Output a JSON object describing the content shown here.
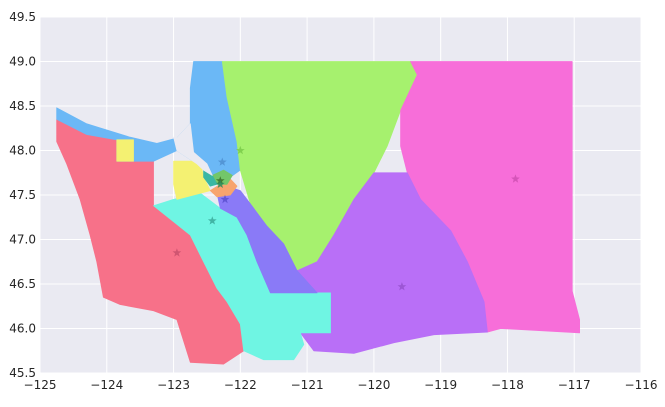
{
  "chart_data": {
    "type": "choropleth-map",
    "title": "",
    "xlabel": "",
    "ylabel": "",
    "xlim": [
      -125,
      -116
    ],
    "ylim": [
      45.5,
      49.5
    ],
    "grid": true,
    "background": "#eaeaf2",
    "x_ticks": [
      -125,
      -124,
      -123,
      -122,
      -121,
      -120,
      -119,
      -118,
      -117,
      -116
    ],
    "x_tick_labels": [
      "−125",
      "−124",
      "−123",
      "−122",
      "−121",
      "−120",
      "−119",
      "−118",
      "−117",
      "−116"
    ],
    "y_ticks": [
      45.5,
      46.0,
      46.5,
      47.0,
      47.5,
      48.0,
      48.5,
      49.0,
      49.5
    ],
    "y_tick_labels": [
      "45.5",
      "46.0",
      "46.5",
      "47.0",
      "47.5",
      "48.0",
      "48.5",
      "49.0",
      "49.5"
    ],
    "regions": [
      {
        "id": "southwest",
        "color": "#f77189",
        "outline": [
          [
            -124.75,
            48.35
          ],
          [
            -124.3,
            48.18
          ],
          [
            -123.85,
            48.12
          ],
          [
            -123.85,
            47.88
          ],
          [
            -123.3,
            47.88
          ],
          [
            -123.3,
            47.38
          ],
          [
            -123.0,
            47.2
          ],
          [
            -122.75,
            47.05
          ],
          [
            -122.55,
            46.75
          ],
          [
            -122.35,
            46.45
          ],
          [
            -122.2,
            46.3
          ],
          [
            -122.0,
            46.05
          ],
          [
            -121.95,
            45.75
          ],
          [
            -122.25,
            45.6
          ],
          [
            -122.75,
            45.62
          ],
          [
            -122.95,
            46.1
          ],
          [
            -123.3,
            46.2
          ],
          [
            -123.8,
            46.27
          ],
          [
            -124.05,
            46.35
          ],
          [
            -124.15,
            46.75
          ],
          [
            -124.25,
            47.05
          ],
          [
            -124.4,
            47.45
          ],
          [
            -124.6,
            47.85
          ],
          [
            -124.75,
            48.1
          ]
        ]
      },
      {
        "id": "northwest-olympic",
        "color": "#6bb8f6",
        "outline": [
          [
            -124.75,
            48.48
          ],
          [
            -124.3,
            48.3
          ],
          [
            -123.65,
            48.15
          ],
          [
            -123.25,
            48.08
          ],
          [
            -122.95,
            48.14
          ],
          [
            -122.75,
            48.3
          ],
          [
            -122.75,
            48.7
          ],
          [
            -122.7,
            49.0
          ],
          [
            -122.27,
            49.0
          ],
          [
            -122.2,
            48.6
          ],
          [
            -122.05,
            48.1
          ],
          [
            -122.0,
            47.78
          ],
          [
            -122.3,
            47.62
          ],
          [
            -122.65,
            47.85
          ],
          [
            -122.95,
            48.0
          ],
          [
            -123.3,
            47.88
          ],
          [
            -123.85,
            47.88
          ],
          [
            -123.85,
            48.12
          ],
          [
            -124.3,
            48.18
          ],
          [
            -124.75,
            48.35
          ]
        ]
      },
      {
        "id": "north-central",
        "color": "#a6f16e",
        "outline": [
          [
            -122.27,
            49.0
          ],
          [
            -119.45,
            49.0
          ],
          [
            -119.35,
            48.85
          ],
          [
            -119.6,
            48.45
          ],
          [
            -119.8,
            48.05
          ],
          [
            -120.0,
            47.75
          ],
          [
            -120.3,
            47.45
          ],
          [
            -120.6,
            47.05
          ],
          [
            -120.85,
            46.75
          ],
          [
            -121.15,
            46.65
          ],
          [
            -121.35,
            46.95
          ],
          [
            -121.6,
            47.15
          ],
          [
            -121.85,
            47.4
          ],
          [
            -122.0,
            47.78
          ],
          [
            -122.05,
            48.1
          ],
          [
            -122.2,
            48.6
          ]
        ]
      },
      {
        "id": "northeast",
        "color": "#f76ed9",
        "outline": [
          [
            -119.45,
            49.0
          ],
          [
            -117.03,
            49.0
          ],
          [
            -117.03,
            46.42
          ],
          [
            -116.92,
            46.1
          ],
          [
            -116.92,
            45.95
          ],
          [
            -118.1,
            46.0
          ],
          [
            -118.3,
            45.96
          ],
          [
            -118.35,
            46.3
          ],
          [
            -118.6,
            46.75
          ],
          [
            -118.85,
            47.1
          ],
          [
            -119.3,
            47.45
          ],
          [
            -119.5,
            47.75
          ],
          [
            -119.6,
            48.05
          ],
          [
            -119.6,
            48.45
          ],
          [
            -119.35,
            48.85
          ]
        ]
      },
      {
        "id": "south-central",
        "color": "#b96ff7",
        "outline": [
          [
            -120.0,
            47.75
          ],
          [
            -120.3,
            47.45
          ],
          [
            -120.6,
            47.05
          ],
          [
            -120.85,
            46.75
          ],
          [
            -121.15,
            46.65
          ],
          [
            -120.85,
            46.4
          ],
          [
            -120.65,
            46.1
          ],
          [
            -120.65,
            45.95
          ],
          [
            -121.1,
            45.95
          ],
          [
            -120.9,
            45.75
          ],
          [
            -120.3,
            45.72
          ],
          [
            -119.7,
            45.84
          ],
          [
            -119.1,
            45.93
          ],
          [
            -118.3,
            45.96
          ],
          [
            -118.35,
            46.3
          ],
          [
            -118.6,
            46.75
          ],
          [
            -118.85,
            47.1
          ],
          [
            -119.3,
            47.45
          ],
          [
            -119.5,
            47.75
          ]
        ]
      },
      {
        "id": "southwest-cascade",
        "color": "#6ff5e3",
        "outline": [
          [
            -122.75,
            47.05
          ],
          [
            -122.55,
            46.75
          ],
          [
            -122.35,
            46.45
          ],
          [
            -122.2,
            46.3
          ],
          [
            -122.0,
            46.05
          ],
          [
            -121.95,
            45.75
          ],
          [
            -121.65,
            45.65
          ],
          [
            -121.2,
            45.65
          ],
          [
            -121.05,
            45.82
          ],
          [
            -121.1,
            45.95
          ],
          [
            -120.65,
            45.95
          ],
          [
            -120.65,
            46.4
          ],
          [
            -121.15,
            46.4
          ],
          [
            -121.55,
            46.4
          ],
          [
            -121.75,
            46.75
          ],
          [
            -121.9,
            47.05
          ],
          [
            -122.05,
            47.25
          ],
          [
            -122.3,
            47.35
          ],
          [
            -122.6,
            47.52
          ],
          [
            -123.0,
            47.45
          ],
          [
            -123.3,
            47.38
          ],
          [
            -123.0,
            47.2
          ]
        ]
      },
      {
        "id": "pierce-east",
        "color": "#8a7af7",
        "outline": [
          [
            -122.3,
            47.35
          ],
          [
            -122.05,
            47.25
          ],
          [
            -121.9,
            47.05
          ],
          [
            -121.75,
            46.75
          ],
          [
            -121.55,
            46.4
          ],
          [
            -121.15,
            46.4
          ],
          [
            -120.85,
            46.4
          ],
          [
            -121.15,
            46.65
          ],
          [
            -121.35,
            46.95
          ],
          [
            -121.6,
            47.15
          ],
          [
            -121.85,
            47.4
          ],
          [
            -122.0,
            47.55
          ],
          [
            -122.2,
            47.6
          ],
          [
            -122.35,
            47.52
          ]
        ]
      },
      {
        "id": "kitsap-yellow",
        "color": "#f4f172",
        "outline": [
          [
            -123.0,
            47.62
          ],
          [
            -123.0,
            47.88
          ],
          [
            -122.6,
            47.88
          ],
          [
            -122.55,
            47.7
          ],
          [
            -122.45,
            47.55
          ],
          [
            -122.6,
            47.52
          ],
          [
            -122.95,
            47.45
          ]
        ]
      },
      {
        "id": "mason-yellow",
        "color": "#f4f172",
        "outline": [
          [
            -123.85,
            47.88
          ],
          [
            -123.85,
            48.12
          ],
          [
            -123.6,
            48.12
          ],
          [
            -123.6,
            47.88
          ]
        ]
      },
      {
        "id": "seattle-orange",
        "color": "#f7a46e",
        "outline": [
          [
            -122.45,
            47.55
          ],
          [
            -122.3,
            47.62
          ],
          [
            -122.15,
            47.68
          ],
          [
            -122.05,
            47.6
          ],
          [
            -122.15,
            47.5
          ],
          [
            -122.35,
            47.48
          ]
        ]
      },
      {
        "id": "seattle-green",
        "color": "#73c66a",
        "outline": [
          [
            -122.42,
            47.72
          ],
          [
            -122.25,
            47.78
          ],
          [
            -122.12,
            47.72
          ],
          [
            -122.2,
            47.62
          ],
          [
            -122.35,
            47.62
          ]
        ]
      },
      {
        "id": "seattle-teal",
        "color": "#3ab7a4",
        "outline": [
          [
            -122.55,
            47.78
          ],
          [
            -122.42,
            47.72
          ],
          [
            -122.35,
            47.62
          ],
          [
            -122.45,
            47.6
          ],
          [
            -122.55,
            47.7
          ]
        ]
      },
      {
        "id": "puget-water",
        "color": "#eaeaf2",
        "outline": [
          [
            -122.75,
            48.3
          ],
          [
            -122.7,
            47.98
          ],
          [
            -122.5,
            47.85
          ],
          [
            -122.42,
            47.72
          ],
          [
            -122.55,
            47.78
          ],
          [
            -122.65,
            47.85
          ],
          [
            -122.95,
            48.0
          ],
          [
            -123.0,
            48.15
          ],
          [
            -122.95,
            48.14
          ]
        ]
      }
    ],
    "centroid_markers": [
      {
        "x": -122.95,
        "y": 46.85,
        "color": "#c9506d"
      },
      {
        "x": -122.42,
        "y": 47.21,
        "color": "#3aa99a"
      },
      {
        "x": -122.23,
        "y": 47.45,
        "color": "#5a4fd0"
      },
      {
        "x": -122.27,
        "y": 47.87,
        "color": "#4f8fd0"
      },
      {
        "x": -122.0,
        "y": 48.0,
        "color": "#7acb4a"
      },
      {
        "x": -122.3,
        "y": 47.66,
        "color": "#3a6e2a"
      },
      {
        "x": -122.3,
        "y": 47.62,
        "color": "#2c8a5a"
      },
      {
        "x": -119.58,
        "y": 46.47,
        "color": "#9652cf"
      },
      {
        "x": -117.88,
        "y": 47.68,
        "color": "#cf50b3"
      }
    ]
  }
}
